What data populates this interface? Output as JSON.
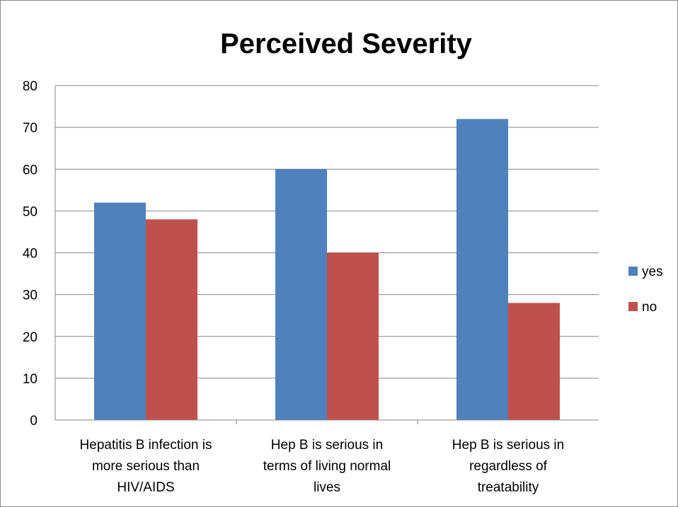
{
  "chart_data": {
    "type": "bar",
    "title": "Perceived Severity",
    "xlabel": "",
    "ylabel": "",
    "categories": [
      [
        "Hepatitis B infection is",
        "more serious than",
        "HIV/AIDS"
      ],
      [
        "Hep B is serious in",
        "terms of living normal",
        "lives"
      ],
      [
        "Hep B is serious in",
        "regardless of",
        "treatability"
      ]
    ],
    "series": [
      {
        "name": "yes",
        "color": "#4F81BD",
        "values": [
          52,
          60,
          72
        ]
      },
      {
        "name": "no",
        "color": "#C0504D",
        "values": [
          48,
          40,
          28
        ]
      }
    ],
    "ylim": [
      0,
      80
    ],
    "yticks": [
      0,
      10,
      20,
      30,
      40,
      50,
      60,
      70,
      80
    ],
    "grid": true,
    "legend": "right"
  }
}
